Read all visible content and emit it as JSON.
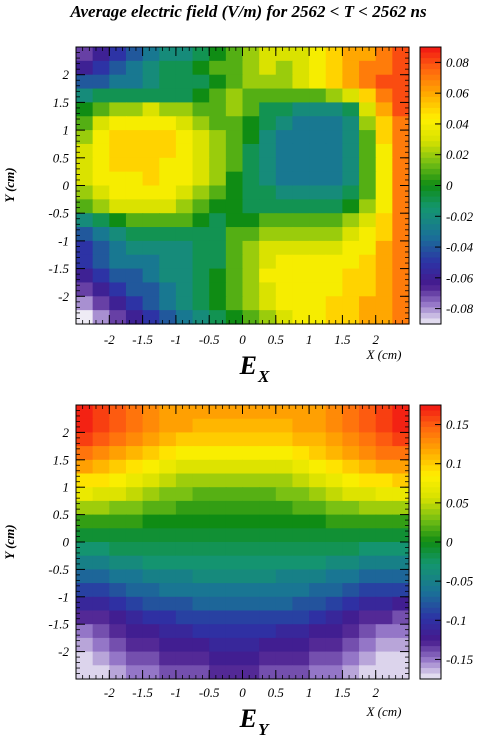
{
  "title": "Average electric field (V/m) for 2562 < T < 2562 ns",
  "chart_data": [
    {
      "type": "heatmap",
      "component_label": "E",
      "component_subscript": "X",
      "xlabel": "X (cm)",
      "ylabel": "Y (cm)",
      "xlim": [
        -2.5,
        2.5
      ],
      "ylim": [
        -2.5,
        2.5
      ],
      "x_ticks": [
        "-2",
        "-1.5",
        "-1",
        "-0.5",
        "0",
        "0.5",
        "1",
        "1.5",
        "2"
      ],
      "y_ticks": [
        "-2",
        "-1.5",
        "-1",
        "-0.5",
        "0",
        "0.5",
        "1",
        "1.5",
        "2"
      ],
      "colorbar_range": [
        -0.09,
        0.09
      ],
      "colorbar_ticks": [
        "0.08",
        "0.06",
        "0.04",
        "0.02",
        "0",
        "-0.02",
        "-0.04",
        "-0.06",
        "-0.08"
      ],
      "grid_size": [
        20,
        20
      ],
      "values": [
        [
          -0.07,
          -0.06,
          -0.05,
          -0.04,
          -0.03,
          -0.02,
          -0.02,
          -0.01,
          0.0,
          0.01,
          0.02,
          0.03,
          0.03,
          0.03,
          0.04,
          0.05,
          0.06,
          0.06,
          0.07,
          0.08
        ],
        [
          -0.06,
          -0.05,
          -0.04,
          -0.03,
          -0.02,
          -0.01,
          -0.01,
          0.0,
          0.01,
          0.01,
          0.02,
          0.03,
          0.02,
          0.03,
          0.04,
          0.05,
          0.06,
          0.07,
          0.07,
          0.08
        ],
        [
          -0.04,
          -0.04,
          -0.03,
          -0.03,
          -0.02,
          -0.01,
          -0.01,
          -0.01,
          0.0,
          0.01,
          0.02,
          0.02,
          0.02,
          0.03,
          0.04,
          0.05,
          0.06,
          0.07,
          0.08,
          0.08
        ],
        [
          -0.02,
          -0.01,
          -0.01,
          -0.01,
          -0.01,
          -0.01,
          -0.01,
          0.0,
          0.01,
          0.02,
          0.01,
          0.01,
          0.01,
          0.01,
          0.01,
          0.02,
          0.03,
          0.05,
          0.07,
          0.08
        ],
        [
          0.0,
          0.01,
          0.02,
          0.02,
          0.03,
          0.02,
          0.02,
          0.01,
          0.01,
          0.02,
          0.01,
          -0.01,
          -0.01,
          -0.02,
          -0.02,
          -0.02,
          -0.01,
          0.03,
          0.06,
          0.08
        ],
        [
          0.01,
          0.03,
          0.04,
          0.04,
          0.04,
          0.04,
          0.03,
          0.02,
          0.01,
          0.01,
          0.0,
          -0.01,
          -0.02,
          -0.03,
          -0.03,
          -0.03,
          -0.02,
          0.02,
          0.05,
          0.07
        ],
        [
          0.02,
          0.04,
          0.05,
          0.05,
          0.05,
          0.05,
          0.04,
          0.03,
          0.02,
          0.01,
          0.0,
          -0.02,
          -0.03,
          -0.03,
          -0.03,
          -0.03,
          -0.02,
          0.01,
          0.05,
          0.07
        ],
        [
          0.03,
          0.04,
          0.05,
          0.05,
          0.05,
          0.05,
          0.04,
          0.03,
          0.02,
          0.01,
          -0.01,
          -0.02,
          -0.03,
          -0.03,
          -0.03,
          -0.03,
          -0.02,
          0.01,
          0.04,
          0.07
        ],
        [
          0.03,
          0.04,
          0.05,
          0.05,
          0.05,
          0.04,
          0.04,
          0.03,
          0.02,
          0.01,
          -0.01,
          -0.02,
          -0.03,
          -0.03,
          -0.03,
          -0.03,
          -0.02,
          0.01,
          0.04,
          0.07
        ],
        [
          0.03,
          0.04,
          0.04,
          0.04,
          0.05,
          0.04,
          0.04,
          0.03,
          0.02,
          0.0,
          -0.01,
          -0.02,
          -0.03,
          -0.03,
          -0.03,
          -0.03,
          -0.02,
          0.01,
          0.04,
          0.07
        ],
        [
          0.02,
          0.03,
          0.04,
          0.04,
          0.04,
          0.04,
          0.03,
          0.02,
          0.01,
          0.0,
          -0.01,
          -0.01,
          -0.02,
          -0.02,
          -0.02,
          -0.02,
          -0.01,
          0.01,
          0.04,
          0.07
        ],
        [
          0.01,
          0.02,
          0.03,
          0.03,
          0.03,
          0.03,
          0.02,
          0.01,
          0.0,
          0.0,
          -0.01,
          -0.01,
          -0.01,
          -0.01,
          -0.01,
          -0.01,
          0.0,
          0.02,
          0.04,
          0.07
        ],
        [
          -0.02,
          -0.01,
          0.0,
          0.01,
          0.01,
          0.01,
          0.01,
          0.0,
          -0.01,
          0.0,
          0.0,
          0.01,
          0.01,
          0.01,
          0.01,
          0.01,
          0.02,
          0.03,
          0.05,
          0.07
        ],
        [
          -0.04,
          -0.03,
          -0.02,
          -0.01,
          -0.01,
          -0.01,
          -0.01,
          -0.01,
          -0.01,
          0.01,
          0.01,
          0.02,
          0.02,
          0.02,
          0.02,
          0.02,
          0.03,
          0.04,
          0.05,
          0.07
        ],
        [
          -0.05,
          -0.04,
          -0.03,
          -0.02,
          -0.02,
          -0.02,
          -0.02,
          -0.01,
          -0.01,
          0.01,
          0.02,
          0.03,
          0.03,
          0.03,
          0.03,
          0.03,
          0.04,
          0.04,
          0.06,
          0.07
        ],
        [
          -0.05,
          -0.04,
          -0.03,
          -0.03,
          -0.03,
          -0.02,
          -0.02,
          -0.01,
          -0.01,
          0.01,
          0.02,
          0.03,
          0.04,
          0.04,
          0.04,
          0.04,
          0.04,
          0.05,
          0.06,
          0.07
        ],
        [
          -0.06,
          -0.05,
          -0.04,
          -0.04,
          -0.03,
          -0.02,
          -0.02,
          -0.01,
          0.0,
          0.01,
          0.02,
          0.04,
          0.04,
          0.04,
          0.04,
          0.04,
          0.05,
          0.05,
          0.06,
          0.07
        ],
        [
          -0.07,
          -0.06,
          -0.05,
          -0.04,
          -0.04,
          -0.03,
          -0.02,
          -0.01,
          0.0,
          0.01,
          0.02,
          0.03,
          0.04,
          0.04,
          0.04,
          0.04,
          0.05,
          0.05,
          0.06,
          0.07
        ],
        [
          -0.08,
          -0.07,
          -0.06,
          -0.05,
          -0.04,
          -0.03,
          -0.02,
          -0.01,
          0.0,
          0.01,
          0.02,
          0.03,
          0.04,
          0.04,
          0.04,
          0.05,
          0.05,
          0.06,
          0.06,
          0.07
        ],
        [
          -0.09,
          -0.08,
          -0.07,
          -0.06,
          -0.05,
          -0.04,
          -0.03,
          -0.02,
          -0.01,
          0.0,
          0.01,
          0.02,
          0.03,
          0.04,
          0.04,
          0.05,
          0.05,
          0.06,
          0.06,
          0.07
        ]
      ]
    },
    {
      "type": "heatmap",
      "component_label": "E",
      "component_subscript": "Y",
      "xlabel": "X (cm)",
      "ylabel": "Y (cm)",
      "xlim": [
        -2.5,
        2.5
      ],
      "ylim": [
        -2.5,
        2.5
      ],
      "x_ticks": [
        "-2",
        "-1.5",
        "-1",
        "-0.5",
        "0",
        "0.5",
        "1",
        "1.5",
        "2"
      ],
      "y_ticks": [
        "-2",
        "-1.5",
        "-1",
        "-0.5",
        "0",
        "0.5",
        "1",
        "1.5",
        "2"
      ],
      "colorbar_range": [
        -0.175,
        0.175
      ],
      "colorbar_ticks": [
        "0.15",
        "0.1",
        "0.05",
        "0",
        "-0.05",
        "-0.1",
        "-0.15"
      ],
      "grid_size": [
        20,
        20
      ],
      "values": [
        [
          0.17,
          0.16,
          0.15,
          0.14,
          0.13,
          0.12,
          0.12,
          0.12,
          0.12,
          0.12,
          0.12,
          0.12,
          0.12,
          0.12,
          0.12,
          0.13,
          0.14,
          0.15,
          0.16,
          0.17
        ],
        [
          0.17,
          0.16,
          0.15,
          0.14,
          0.13,
          0.12,
          0.12,
          0.11,
          0.11,
          0.11,
          0.11,
          0.11,
          0.11,
          0.12,
          0.12,
          0.13,
          0.14,
          0.15,
          0.16,
          0.17
        ],
        [
          0.16,
          0.15,
          0.14,
          0.13,
          0.12,
          0.11,
          0.1,
          0.1,
          0.1,
          0.1,
          0.1,
          0.1,
          0.1,
          0.11,
          0.11,
          0.12,
          0.13,
          0.14,
          0.15,
          0.16
        ],
        [
          0.14,
          0.13,
          0.12,
          0.11,
          0.1,
          0.09,
          0.08,
          0.08,
          0.08,
          0.08,
          0.08,
          0.08,
          0.08,
          0.09,
          0.1,
          0.11,
          0.12,
          0.13,
          0.14,
          0.14
        ],
        [
          0.12,
          0.11,
          0.1,
          0.09,
          0.08,
          0.07,
          0.06,
          0.06,
          0.06,
          0.06,
          0.06,
          0.06,
          0.06,
          0.07,
          0.08,
          0.09,
          0.1,
          0.11,
          0.12,
          0.12
        ],
        [
          0.09,
          0.09,
          0.08,
          0.07,
          0.06,
          0.05,
          0.04,
          0.04,
          0.04,
          0.04,
          0.04,
          0.04,
          0.04,
          0.05,
          0.06,
          0.07,
          0.08,
          0.09,
          0.09,
          0.1
        ],
        [
          0.07,
          0.06,
          0.06,
          0.05,
          0.04,
          0.03,
          0.03,
          0.02,
          0.02,
          0.02,
          0.02,
          0.02,
          0.03,
          0.03,
          0.04,
          0.05,
          0.06,
          0.06,
          0.07,
          0.07
        ],
        [
          0.04,
          0.04,
          0.03,
          0.03,
          0.02,
          0.02,
          0.01,
          0.01,
          0.01,
          0.01,
          0.01,
          0.01,
          0.01,
          0.02,
          0.02,
          0.03,
          0.03,
          0.04,
          0.04,
          0.04
        ],
        [
          0.01,
          0.01,
          0.01,
          0.01,
          0.0,
          0.0,
          0.0,
          0.0,
          0.0,
          0.0,
          0.0,
          0.0,
          0.0,
          0.0,
          0.0,
          0.01,
          0.01,
          0.01,
          0.01,
          0.01
        ],
        [
          -0.01,
          -0.01,
          -0.01,
          -0.01,
          -0.01,
          -0.01,
          -0.01,
          -0.01,
          -0.01,
          -0.01,
          -0.01,
          -0.01,
          -0.01,
          -0.01,
          -0.01,
          -0.01,
          -0.01,
          -0.01,
          -0.01,
          -0.01
        ],
        [
          -0.03,
          -0.03,
          -0.02,
          -0.02,
          -0.02,
          -0.02,
          -0.02,
          -0.02,
          -0.02,
          -0.02,
          -0.02,
          -0.02,
          -0.02,
          -0.02,
          -0.02,
          -0.02,
          -0.02,
          -0.03,
          -0.03,
          -0.03
        ],
        [
          -0.05,
          -0.05,
          -0.04,
          -0.04,
          -0.03,
          -0.03,
          -0.03,
          -0.03,
          -0.03,
          -0.03,
          -0.03,
          -0.03,
          -0.03,
          -0.03,
          -0.03,
          -0.04,
          -0.04,
          -0.05,
          -0.05,
          -0.05
        ],
        [
          -0.07,
          -0.07,
          -0.06,
          -0.06,
          -0.05,
          -0.05,
          -0.05,
          -0.04,
          -0.04,
          -0.04,
          -0.04,
          -0.04,
          -0.05,
          -0.05,
          -0.05,
          -0.06,
          -0.06,
          -0.07,
          -0.07,
          -0.07
        ],
        [
          -0.09,
          -0.09,
          -0.08,
          -0.07,
          -0.07,
          -0.06,
          -0.06,
          -0.06,
          -0.06,
          -0.06,
          -0.06,
          -0.06,
          -0.06,
          -0.06,
          -0.07,
          -0.07,
          -0.08,
          -0.09,
          -0.09,
          -0.09
        ],
        [
          -0.11,
          -0.11,
          -0.1,
          -0.09,
          -0.08,
          -0.08,
          -0.08,
          -0.07,
          -0.07,
          -0.07,
          -0.07,
          -0.07,
          -0.07,
          -0.08,
          -0.08,
          -0.09,
          -0.1,
          -0.11,
          -0.11,
          -0.12
        ],
        [
          -0.13,
          -0.13,
          -0.12,
          -0.11,
          -0.1,
          -0.1,
          -0.09,
          -0.09,
          -0.09,
          -0.09,
          -0.09,
          -0.09,
          -0.09,
          -0.09,
          -0.1,
          -0.11,
          -0.12,
          -0.13,
          -0.13,
          -0.14
        ],
        [
          -0.15,
          -0.14,
          -0.13,
          -0.12,
          -0.12,
          -0.11,
          -0.11,
          -0.1,
          -0.1,
          -0.1,
          -0.1,
          -0.1,
          -0.11,
          -0.11,
          -0.12,
          -0.12,
          -0.13,
          -0.14,
          -0.15,
          -0.15
        ],
        [
          -0.16,
          -0.15,
          -0.14,
          -0.13,
          -0.13,
          -0.12,
          -0.12,
          -0.12,
          -0.11,
          -0.11,
          -0.11,
          -0.12,
          -0.12,
          -0.12,
          -0.13,
          -0.13,
          -0.14,
          -0.15,
          -0.16,
          -0.16
        ],
        [
          -0.17,
          -0.16,
          -0.15,
          -0.14,
          -0.14,
          -0.13,
          -0.13,
          -0.13,
          -0.12,
          -0.12,
          -0.12,
          -0.13,
          -0.13,
          -0.13,
          -0.14,
          -0.14,
          -0.15,
          -0.16,
          -0.17,
          -0.17
        ],
        [
          -0.17,
          -0.17,
          -0.16,
          -0.15,
          -0.15,
          -0.14,
          -0.14,
          -0.14,
          -0.13,
          -0.13,
          -0.13,
          -0.14,
          -0.14,
          -0.14,
          -0.15,
          -0.15,
          -0.16,
          -0.17,
          -0.17,
          -0.17
        ]
      ]
    }
  ]
}
